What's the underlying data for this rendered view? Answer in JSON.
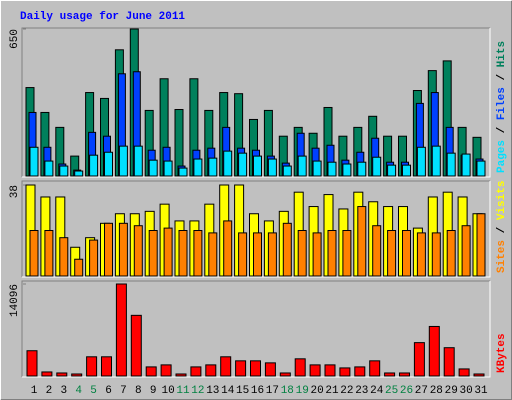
{
  "chart_data": [
    {
      "type": "bar",
      "title": "Daily usage for June 2011",
      "title_color": "#0000ff",
      "ylim": [
        0,
        650
      ],
      "yticks": [
        650
      ],
      "legend_separator": " / ",
      "series": [
        {
          "name": "Hits",
          "color": "#00805c",
          "values": [
            391,
            281,
            215,
            88,
            369,
            343,
            558,
            650,
            290,
            430,
            294,
            430,
            290,
            369,
            364,
            250,
            290,
            176,
            215,
            189,
            303,
            176,
            215,
            264,
            176,
            176,
            378,
            466,
            509,
            215,
            171
          ]
        },
        {
          "name": "Files",
          "color": "#0040ff",
          "values": [
            281,
            127,
            53,
            26,
            193,
            176,
            452,
            461,
            114,
            127,
            44,
            114,
            123,
            215,
            123,
            114,
            88,
            57,
            189,
            123,
            136,
            70,
            105,
            167,
            61,
            61,
            321,
            369,
            215,
            92,
            75
          ]
        },
        {
          "name": "Pages",
          "color": "#00e0ff",
          "values": [
            127,
            66,
            44,
            22,
            92,
            105,
            132,
            132,
            70,
            66,
            35,
            75,
            79,
            110,
            101,
            88,
            75,
            44,
            88,
            66,
            61,
            53,
            61,
            83,
            48,
            48,
            127,
            132,
            101,
            97,
            66
          ]
        }
      ]
    },
    {
      "type": "bar",
      "ylim": [
        0,
        38
      ],
      "yticks": [
        38
      ],
      "legend_separator": " / ",
      "series": [
        {
          "name": "Visits",
          "color": "#ffff00",
          "values": [
            38,
            33,
            33,
            12,
            16,
            22,
            26,
            26,
            27,
            30,
            23,
            23,
            30,
            38,
            38,
            26,
            23,
            27,
            35,
            29,
            34,
            28,
            35,
            31,
            29,
            29,
            20,
            33,
            35,
            33,
            26
          ]
        },
        {
          "name": "Sites",
          "color": "#ff8000",
          "values": [
            19,
            19,
            16,
            7,
            15,
            22,
            22,
            21,
            19,
            20,
            19,
            19,
            18,
            23,
            18,
            18,
            18,
            22,
            19,
            18,
            19,
            19,
            29,
            21,
            19,
            19,
            18,
            18,
            19,
            21,
            26
          ]
        }
      ]
    },
    {
      "type": "bar",
      "ylim": [
        0,
        14096
      ],
      "yticks": [
        14096
      ],
      "categories": [
        1,
        2,
        3,
        4,
        5,
        6,
        7,
        8,
        9,
        10,
        11,
        12,
        13,
        14,
        15,
        16,
        17,
        18,
        19,
        20,
        21,
        22,
        23,
        24,
        25,
        26,
        27,
        28,
        29,
        30,
        31
      ],
      "category_colors": [
        "#000000",
        "#000000",
        "#000000",
        "#008040",
        "#008040",
        "#000000",
        "#000000",
        "#000000",
        "#000000",
        "#000000",
        "#008040",
        "#008040",
        "#000000",
        "#000000",
        "#000000",
        "#000000",
        "#000000",
        "#008040",
        "#008040",
        "#000000",
        "#000000",
        "#000000",
        "#000000",
        "#000000",
        "#008040",
        "#008040",
        "#000000",
        "#000000",
        "#000000",
        "#000000",
        "#000000"
      ],
      "series": [
        {
          "name": "KBytes",
          "color": "#ff0000",
          "values": [
            3873,
            620,
            465,
            310,
            2943,
            2943,
            14096,
            9294,
            1394,
            1704,
            310,
            1394,
            1704,
            2943,
            2324,
            2324,
            2014,
            465,
            2633,
            1704,
            1704,
            1239,
            1394,
            2324,
            465,
            465,
            5113,
            7591,
            4337,
            1084,
            310
          ]
        }
      ]
    }
  ]
}
